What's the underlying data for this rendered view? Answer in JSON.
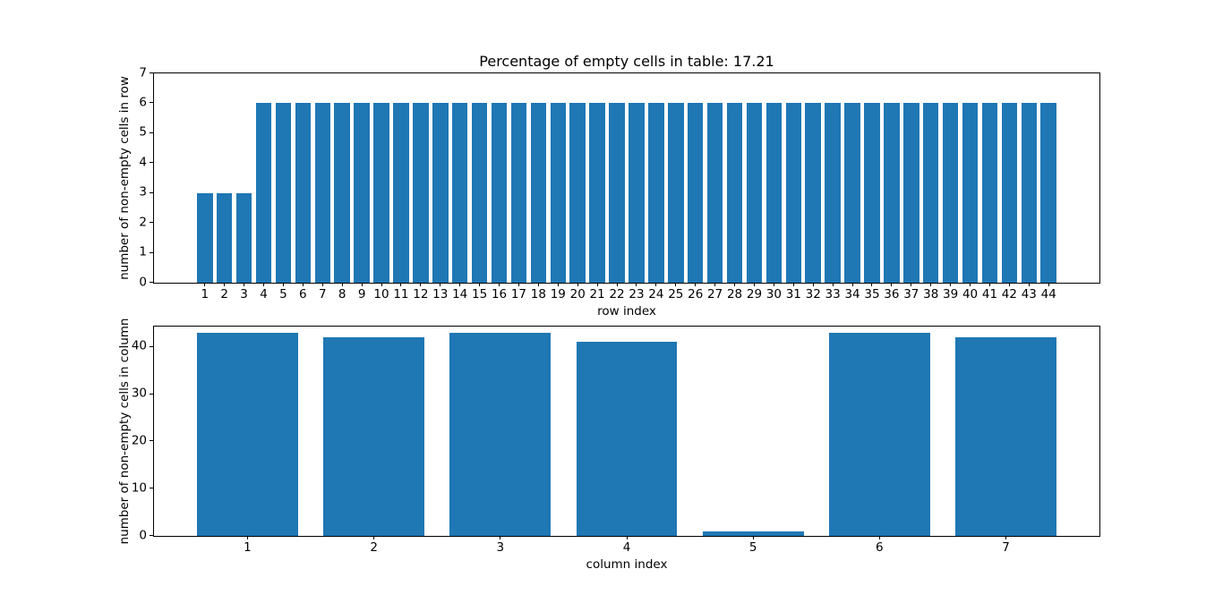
{
  "figure": {
    "background": "#ffffff",
    "bar_color": "#1f77b4",
    "text_color": "#000000"
  },
  "chart_data": [
    {
      "type": "bar",
      "title": "Percentage of empty cells in table: 17.21",
      "xlabel": "row index",
      "ylabel": "number of non-empty cells in row",
      "categories": [
        1,
        2,
        3,
        4,
        5,
        6,
        7,
        8,
        9,
        10,
        11,
        12,
        13,
        14,
        15,
        16,
        17,
        18,
        19,
        20,
        21,
        22,
        23,
        24,
        25,
        26,
        27,
        28,
        29,
        30,
        31,
        32,
        33,
        34,
        35,
        36,
        37,
        38,
        39,
        40,
        41,
        42,
        43,
        44
      ],
      "values": [
        3,
        3,
        3,
        6,
        6,
        6,
        6,
        6,
        6,
        6,
        6,
        6,
        6,
        6,
        6,
        6,
        6,
        6,
        6,
        6,
        6,
        6,
        6,
        6,
        6,
        6,
        6,
        6,
        6,
        6,
        6,
        6,
        6,
        6,
        6,
        6,
        6,
        6,
        6,
        6,
        6,
        6,
        6,
        6
      ],
      "ylim": [
        0,
        7
      ],
      "yticks": [
        0,
        1,
        2,
        3,
        4,
        5,
        6,
        7
      ],
      "bar_width": 0.8,
      "grid": false
    },
    {
      "type": "bar",
      "title": "",
      "xlabel": "column index",
      "ylabel": "number of non-empty cells in column",
      "categories": [
        1,
        2,
        3,
        4,
        5,
        6,
        7
      ],
      "values": [
        43,
        42,
        43,
        41,
        1,
        43,
        42
      ],
      "ylim": [
        0,
        44.3
      ],
      "yticks": [
        0,
        10,
        20,
        30,
        40
      ],
      "bar_width": 0.8,
      "grid": false
    }
  ]
}
